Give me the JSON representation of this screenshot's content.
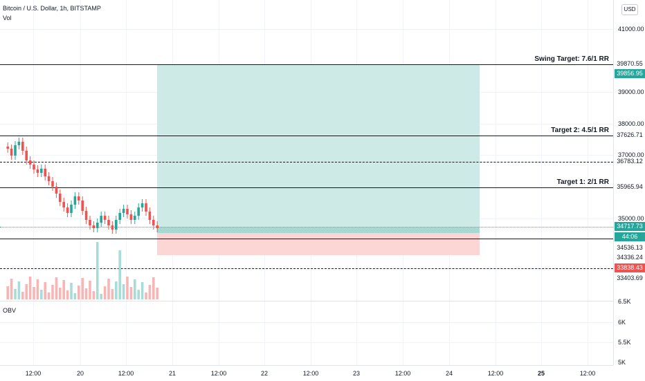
{
  "legend": {
    "title": "Bitcoin / U.S. Dollar, 1h, BITSTAMP",
    "volume": "Vol",
    "indicator": "OBV"
  },
  "currency_button": "USD",
  "price_ticks": [
    "41000.00",
    "39000.00",
    "38000.00",
    "37000.00",
    "35000.00"
  ],
  "obv_ticks": [
    "6.5K",
    "6K",
    "5.5K",
    "5K"
  ],
  "price_tags": [
    {
      "text": "39870.55",
      "bg": "#ffffff",
      "fg": "#131722"
    },
    {
      "text": "39856.95",
      "bg": "#26a69a",
      "fg": "#ffffff"
    },
    {
      "text": "37626.71",
      "bg": "#ffffff",
      "fg": "#131722"
    },
    {
      "text": "36783.12",
      "bg": "#ffffff",
      "fg": "#131722"
    },
    {
      "text": "35965.94",
      "bg": "#ffffff",
      "fg": "#131722"
    },
    {
      "text": "34717.73",
      "bg": "#26a69a",
      "fg": "#ffffff"
    },
    {
      "text": "44:06",
      "bg": "#26a69a",
      "fg": "#ffffff"
    },
    {
      "text": "34536.13",
      "bg": "#ffffff",
      "fg": "#131722"
    },
    {
      "text": "34336.24",
      "bg": "#ffffff",
      "fg": "#131722"
    },
    {
      "text": "33838.43",
      "bg": "#ef5350",
      "fg": "#ffffff"
    },
    {
      "text": "33403.69",
      "bg": "#ffffff",
      "fg": "#131722"
    }
  ],
  "targets": {
    "swing": "Swing Target: 7.6/1 RR",
    "t2": "Target 2: 4.5/1 RR",
    "t1": "Target 1: 2/1 RR"
  },
  "time_labels": [
    {
      "text": "12:00",
      "bold": false
    },
    {
      "text": "20",
      "bold": false
    },
    {
      "text": "12:00",
      "bold": false
    },
    {
      "text": "21",
      "bold": false
    },
    {
      "text": "12:00",
      "bold": false
    },
    {
      "text": "22",
      "bold": false
    },
    {
      "text": "12:00",
      "bold": false
    },
    {
      "text": "23",
      "bold": false
    },
    {
      "text": "12:00",
      "bold": false
    },
    {
      "text": "24",
      "bold": false
    },
    {
      "text": "12:00",
      "bold": false
    },
    {
      "text": "25",
      "bold": true
    },
    {
      "text": "12:00",
      "bold": false
    }
  ],
  "colors": {
    "up": "#26a69a",
    "down": "#ef5350",
    "profit_zone": "#cdeae6",
    "loss_zone": "#fcd6d5"
  }
}
